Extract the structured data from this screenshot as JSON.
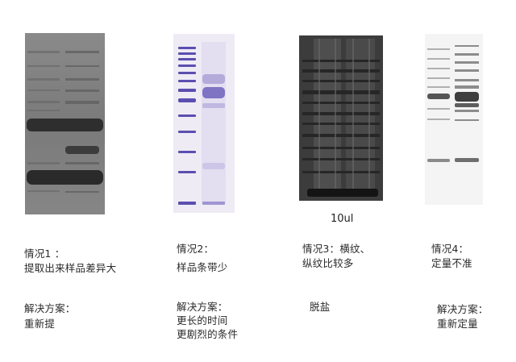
{
  "panels": [
    {
      "case_title": "情况1 ：",
      "case_desc": "提取出来样品差异大",
      "solution_title": "解决方案：",
      "solution_lines": [
        "重新提"
      ]
    },
    {
      "case_title": "情况2：",
      "case_desc": "样品条带少",
      "solution_title": "解决方案：",
      "solution_lines": [
        "更长的时间",
        "更剧烈的条件"
      ]
    },
    {
      "case_title": "情况3：横纹、",
      "case_desc": "纵纹比较多",
      "gel_label": "10ul",
      "solution_title": "",
      "solution_lines": [
        "脱盐"
      ]
    },
    {
      "case_title": "情况4：",
      "case_desc": "定量不准",
      "solution_title": "解决方案：",
      "solution_lines": [
        "重新定量"
      ]
    }
  ],
  "colors": {
    "gel1_bg": "#7c7c7c",
    "gel2_bg": "#eeeaf4",
    "gel2_band": "#5a4fb0",
    "gel3_bg": "#3a3a3a",
    "gel4_bg": "#f4f4f4"
  }
}
